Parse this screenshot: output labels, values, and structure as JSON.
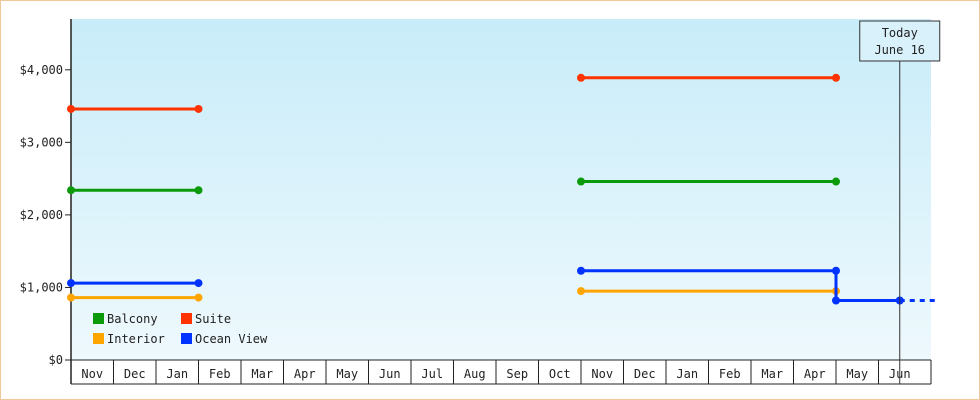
{
  "chart_data": {
    "type": "line",
    "ylim": [
      0,
      4700
    ],
    "yticks": [
      {
        "value": 0,
        "label": "$0"
      },
      {
        "value": 1000,
        "label": "$1,000"
      },
      {
        "value": 2000,
        "label": "$2,000"
      },
      {
        "value": 3000,
        "label": "$3,000"
      },
      {
        "value": 4000,
        "label": "$4,000"
      }
    ],
    "months": [
      "Nov",
      "Dec",
      "Jan",
      "Feb",
      "Mar",
      "Apr",
      "May",
      "Jun",
      "Jul",
      "Aug",
      "Sep",
      "Oct",
      "Nov",
      "Dec",
      "Jan",
      "Feb",
      "Mar",
      "Apr",
      "May",
      "Jun"
    ],
    "x_start": 0,
    "x_end": 20.35,
    "grid": false,
    "legend_position": "bottom-left",
    "today": {
      "line1": "Today",
      "line2": "June 16",
      "x": 19.5
    },
    "series": [
      {
        "name": "Balcony",
        "color": "#0a9a0a",
        "segments": [
          [
            {
              "x": 0,
              "y": 2340
            },
            {
              "x": 3.0,
              "y": 2340
            }
          ],
          [
            {
              "x": 12.0,
              "y": 2460
            },
            {
              "x": 18.0,
              "y": 2460
            }
          ]
        ]
      },
      {
        "name": "Suite",
        "color": "#ff3300",
        "segments": [
          [
            {
              "x": 0,
              "y": 3460
            },
            {
              "x": 3.0,
              "y": 3460
            }
          ],
          [
            {
              "x": 12.0,
              "y": 3890
            },
            {
              "x": 18.0,
              "y": 3890
            }
          ]
        ]
      },
      {
        "name": "Interior",
        "color": "#ffa500",
        "segments": [
          [
            {
              "x": 0,
              "y": 860
            },
            {
              "x": 3.0,
              "y": 860
            }
          ],
          [
            {
              "x": 12.0,
              "y": 950
            },
            {
              "x": 18.0,
              "y": 950
            }
          ]
        ]
      },
      {
        "name": "Ocean View",
        "color": "#0033ff",
        "segments": [
          [
            {
              "x": 0,
              "y": 1060
            },
            {
              "x": 3.0,
              "y": 1060
            }
          ],
          [
            {
              "x": 12.0,
              "y": 1230
            },
            {
              "x": 18.0,
              "y": 1230
            },
            {
              "x": 18.0,
              "y": 820
            },
            {
              "x": 19.5,
              "y": 820
            }
          ]
        ],
        "projection": [
          {
            "x": 19.5,
            "y": 820
          },
          {
            "x": 20.35,
            "y": 820
          }
        ]
      }
    ]
  }
}
